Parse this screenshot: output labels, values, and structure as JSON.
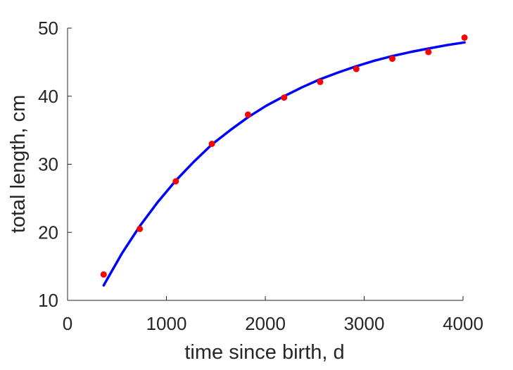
{
  "chart_data": {
    "type": "scatter",
    "title": "",
    "xlabel": "time since birth, d",
    "ylabel": "total length, cm",
    "xlim": [
      0,
      4000
    ],
    "ylim": [
      10,
      50
    ],
    "x_ticks": [
      "0",
      "1000",
      "2000",
      "3000",
      "4000"
    ],
    "y_ticks": [
      "10",
      "20",
      "30",
      "40",
      "50"
    ],
    "grid": false,
    "legend": "none",
    "series": [
      {
        "kind": "points",
        "color": "#ff0000",
        "x": [
          365,
          730,
          1095,
          1460,
          1825,
          2190,
          2555,
          2920,
          3285,
          3650,
          4015
        ],
        "y": [
          13.8,
          20.5,
          27.5,
          33.0,
          37.3,
          39.8,
          42.1,
          44.0,
          45.5,
          46.5,
          48.6
        ]
      },
      {
        "kind": "fitted-line",
        "color": "#0000ff",
        "x": [
          365,
          550,
          730,
          915,
          1095,
          1280,
          1460,
          1645,
          1825,
          2010,
          2190,
          2370,
          2555,
          2740,
          2920,
          3100,
          3285,
          3470,
          3650,
          3835,
          4015
        ],
        "y": [
          12.2,
          16.9,
          20.9,
          24.5,
          27.6,
          30.4,
          32.9,
          35.0,
          36.9,
          38.6,
          40.0,
          41.3,
          42.5,
          43.5,
          44.4,
          45.2,
          45.9,
          46.5,
          47.0,
          47.5,
          47.9
        ]
      }
    ]
  }
}
